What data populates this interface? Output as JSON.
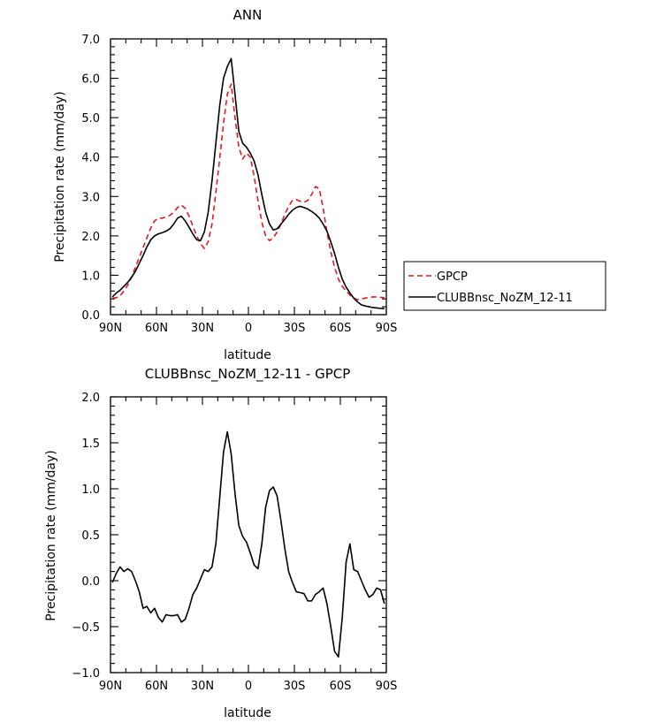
{
  "colors": {
    "obs": "#e31a1c",
    "model": "#000000"
  },
  "chart_data": [
    {
      "type": "line",
      "title": "ANN",
      "xlabel": "latitude",
      "ylabel": "Precipitation rate (mm/day)",
      "xlim": [
        90,
        -90
      ],
      "ylim": [
        0,
        7
      ],
      "x_ticks": [
        {
          "value": 90,
          "label": "90N"
        },
        {
          "value": 60,
          "label": "60N"
        },
        {
          "value": 30,
          "label": "30N"
        },
        {
          "value": 0,
          "label": "0"
        },
        {
          "value": -30,
          "label": "30S"
        },
        {
          "value": -60,
          "label": "60S"
        },
        {
          "value": -90,
          "label": "90S"
        }
      ],
      "y_ticks": [
        {
          "value": 0,
          "label": "0.0"
        },
        {
          "value": 1,
          "label": "1.0"
        },
        {
          "value": 2,
          "label": "2.0"
        },
        {
          "value": 3,
          "label": "3.0"
        },
        {
          "value": 4,
          "label": "4.0"
        },
        {
          "value": 5,
          "label": "5.0"
        },
        {
          "value": 6,
          "label": "6.0"
        },
        {
          "value": 7,
          "label": "7.0"
        }
      ],
      "legend": "right",
      "series": [
        {
          "name": "GPCP",
          "color": "#e31a1c",
          "dash": "dashed",
          "x": [
            88.75,
            86.25,
            83.75,
            81.25,
            78.75,
            76.25,
            73.75,
            71.25,
            68.75,
            66.25,
            63.75,
            61.25,
            58.75,
            56.25,
            53.75,
            51.25,
            48.75,
            46.25,
            43.75,
            41.25,
            38.75,
            36.25,
            33.75,
            31.25,
            28.75,
            26.25,
            23.75,
            21.25,
            18.75,
            16.25,
            13.75,
            11.25,
            8.75,
            6.25,
            3.75,
            1.25,
            -1.25,
            -3.75,
            -6.25,
            -8.75,
            -11.25,
            -13.75,
            -16.25,
            -18.75,
            -21.25,
            -23.75,
            -26.25,
            -28.75,
            -31.25,
            -33.75,
            -36.25,
            -38.75,
            -41.25,
            -43.75,
            -46.25,
            -48.75,
            -51.25,
            -53.75,
            -56.25,
            -58.75,
            -61.25,
            -63.75,
            -66.25,
            -68.75,
            -71.25,
            -73.75,
            -76.25,
            -78.75,
            -81.25,
            -83.75,
            -86.25,
            -88.75
          ],
          "y": [
            0.42,
            0.43,
            0.48,
            0.6,
            0.75,
            0.95,
            1.2,
            1.45,
            1.7,
            1.95,
            2.2,
            2.38,
            2.45,
            2.45,
            2.48,
            2.52,
            2.6,
            2.72,
            2.78,
            2.7,
            2.5,
            2.25,
            2.0,
            1.8,
            1.68,
            1.85,
            2.3,
            3.1,
            3.95,
            4.85,
            5.6,
            5.85,
            5.0,
            4.25,
            3.95,
            4.1,
            4.0,
            3.5,
            2.9,
            2.35,
            2.0,
            1.88,
            1.95,
            2.1,
            2.3,
            2.55,
            2.75,
            2.9,
            2.92,
            2.88,
            2.85,
            2.9,
            3.05,
            3.25,
            3.2,
            2.7,
            2.1,
            1.6,
            1.2,
            0.9,
            0.72,
            0.6,
            0.5,
            0.42,
            0.38,
            0.4,
            0.42,
            0.44,
            0.45,
            0.45,
            0.44,
            0.43
          ]
        },
        {
          "name": "CLUBBnsc_NoZM_12-11",
          "color": "#000000",
          "dash": "solid",
          "x": [
            88.75,
            86.25,
            83.75,
            81.25,
            78.75,
            76.25,
            73.75,
            71.25,
            68.75,
            66.25,
            63.75,
            61.25,
            58.75,
            56.25,
            53.75,
            51.25,
            48.75,
            46.25,
            43.75,
            41.25,
            38.75,
            36.25,
            33.75,
            31.25,
            28.75,
            26.25,
            23.75,
            21.25,
            18.75,
            16.25,
            13.75,
            11.25,
            8.75,
            6.25,
            3.75,
            1.25,
            -1.25,
            -3.75,
            -6.25,
            -8.75,
            -11.25,
            -13.75,
            -16.25,
            -18.75,
            -21.25,
            -23.75,
            -26.25,
            -28.75,
            -31.25,
            -33.75,
            -36.25,
            -38.75,
            -41.25,
            -43.75,
            -46.25,
            -48.75,
            -51.25,
            -53.75,
            -56.25,
            -58.75,
            -61.25,
            -63.75,
            -66.25,
            -68.75,
            -71.25,
            -73.75,
            -76.25,
            -78.75,
            -81.25,
            -83.75,
            -86.25,
            -88.75
          ],
          "y": [
            0.45,
            0.55,
            0.62,
            0.72,
            0.82,
            0.95,
            1.1,
            1.3,
            1.5,
            1.72,
            1.9,
            2.0,
            2.05,
            2.08,
            2.12,
            2.18,
            2.3,
            2.45,
            2.5,
            2.38,
            2.22,
            2.05,
            1.9,
            1.88,
            2.1,
            2.6,
            3.4,
            4.35,
            5.3,
            6.0,
            6.3,
            6.5,
            5.6,
            4.65,
            4.35,
            4.25,
            4.1,
            3.9,
            3.55,
            3.05,
            2.6,
            2.3,
            2.15,
            2.18,
            2.3,
            2.42,
            2.55,
            2.65,
            2.72,
            2.75,
            2.72,
            2.68,
            2.62,
            2.55,
            2.45,
            2.3,
            2.12,
            1.85,
            1.55,
            1.2,
            0.9,
            0.7,
            0.55,
            0.42,
            0.32,
            0.25,
            0.22,
            0.2,
            0.18,
            0.17,
            0.16,
            0.15
          ]
        }
      ]
    },
    {
      "type": "line",
      "title": "CLUBBnsc_NoZM_12-11 - GPCP",
      "xlabel": "latitude",
      "ylabel": "Precipitation rate (mm/day)",
      "xlim": [
        90,
        -90
      ],
      "ylim": [
        -1,
        2
      ],
      "x_ticks": [
        {
          "value": 90,
          "label": "90N"
        },
        {
          "value": 60,
          "label": "60N"
        },
        {
          "value": 30,
          "label": "30N"
        },
        {
          "value": 0,
          "label": "0"
        },
        {
          "value": -30,
          "label": "30S"
        },
        {
          "value": -60,
          "label": "60S"
        },
        {
          "value": -90,
          "label": "90S"
        }
      ],
      "y_ticks": [
        {
          "value": -1,
          "label": "−1.0"
        },
        {
          "value": -0.5,
          "label": "−0.5"
        },
        {
          "value": 0,
          "label": "0.0"
        },
        {
          "value": 0.5,
          "label": "0.5"
        },
        {
          "value": 1,
          "label": "1.0"
        },
        {
          "value": 1.5,
          "label": "1.5"
        },
        {
          "value": 2,
          "label": "2.0"
        }
      ],
      "series": [
        {
          "color": "#000000",
          "dash": "solid",
          "x": [
            88.75,
            86.25,
            83.75,
            81.25,
            78.75,
            76.25,
            73.75,
            71.25,
            68.75,
            66.25,
            63.75,
            61.25,
            58.75,
            56.25,
            53.75,
            51.25,
            48.75,
            46.25,
            43.75,
            41.25,
            38.75,
            36.25,
            33.75,
            31.25,
            28.75,
            26.25,
            23.75,
            21.25,
            18.75,
            16.25,
            13.75,
            11.25,
            8.75,
            6.25,
            3.75,
            1.25,
            -1.25,
            -3.75,
            -6.25,
            -8.75,
            -11.25,
            -13.75,
            -16.25,
            -18.75,
            -21.25,
            -23.75,
            -26.25,
            -28.75,
            -31.25,
            -33.75,
            -36.25,
            -38.75,
            -41.25,
            -43.75,
            -46.25,
            -48.75,
            -51.25,
            -53.75,
            -56.25,
            -58.75,
            -61.25,
            -63.75,
            -66.25,
            -68.75,
            -71.25,
            -73.75,
            -76.25,
            -78.75,
            -81.25,
            -83.75,
            -86.25,
            -88.75
          ],
          "y": [
            -0.02,
            0.08,
            0.15,
            0.1,
            0.13,
            0.1,
            0.0,
            -0.12,
            -0.3,
            -0.28,
            -0.35,
            -0.3,
            -0.4,
            -0.45,
            -0.37,
            -0.38,
            -0.38,
            -0.37,
            -0.45,
            -0.42,
            -0.3,
            -0.15,
            -0.08,
            0.02,
            0.12,
            0.1,
            0.15,
            0.4,
            0.9,
            1.4,
            1.62,
            1.38,
            0.95,
            0.6,
            0.48,
            0.42,
            0.3,
            0.17,
            0.13,
            0.4,
            0.8,
            0.98,
            1.02,
            0.92,
            0.65,
            0.35,
            0.1,
            -0.02,
            -0.12,
            -0.13,
            -0.14,
            -0.22,
            -0.22,
            -0.15,
            -0.12,
            -0.08,
            -0.25,
            -0.5,
            -0.77,
            -0.83,
            -0.4,
            0.2,
            0.4,
            0.12,
            0.1,
            0.0,
            -0.1,
            -0.18,
            -0.15,
            -0.08,
            -0.1,
            -0.25
          ]
        }
      ]
    }
  ]
}
